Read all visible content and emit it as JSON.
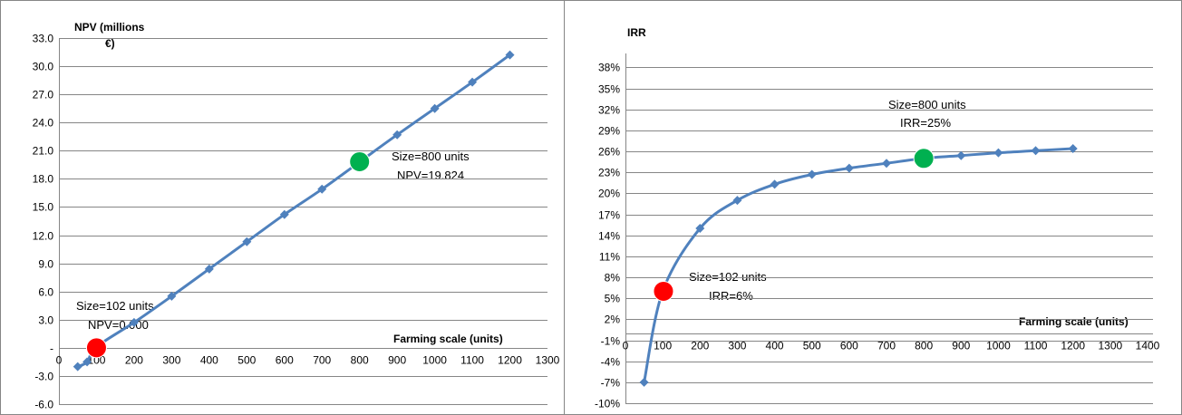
{
  "colors": {
    "series": "#4f81bd",
    "red_marker": "#ff0000",
    "green_marker": "#00b050",
    "grid": "#868686"
  },
  "chart_data": [
    {
      "type": "line",
      "ylabel_line1": "NPV (millions",
      "ylabel_line2": "€)",
      "xlabel": "Farming scale  (units)",
      "ylim": [
        -6,
        33
      ],
      "xlim": [
        0,
        1300
      ],
      "y_ticks": [
        {
          "v": 33,
          "t": "33.0"
        },
        {
          "v": 30,
          "t": "30.0"
        },
        {
          "v": 27,
          "t": "27.0"
        },
        {
          "v": 24,
          "t": "24.0"
        },
        {
          "v": 21,
          "t": "21.0"
        },
        {
          "v": 18,
          "t": "18.0"
        },
        {
          "v": 15,
          "t": "15.0"
        },
        {
          "v": 12,
          "t": "12.0"
        },
        {
          "v": 9,
          "t": "9.0"
        },
        {
          "v": 6,
          "t": "6.0"
        },
        {
          "v": 3,
          "t": "3.0"
        },
        {
          "v": 0,
          "t": "-"
        },
        {
          "v": -3,
          "t": "-3.0"
        },
        {
          "v": -6,
          "t": "-6.0"
        }
      ],
      "x_ticks": [
        "0",
        "100",
        "200",
        "300",
        "400",
        "500",
        "600",
        "700",
        "800",
        "900",
        "1000",
        "1100",
        "1200",
        "1300"
      ],
      "series": [
        {
          "x": [
            50,
            75,
            100,
            200,
            300,
            400,
            500,
            600,
            700,
            800,
            900,
            1000,
            1100,
            1200
          ],
          "values": [
            -2.0,
            -1.5,
            0.1,
            2.7,
            5.5,
            8.4,
            11.3,
            14.2,
            16.9,
            19.8,
            22.7,
            25.5,
            28.3,
            31.2
          ]
        }
      ],
      "highlights": [
        {
          "x": 100,
          "y": 0.0,
          "color": "red",
          "label1": "Size=102 units",
          "label2": "NPV=0.000"
        },
        {
          "x": 800,
          "y": 19.824,
          "color": "green",
          "label1": "Size=800 units",
          "label2": "NPV=19.824"
        }
      ]
    },
    {
      "type": "line",
      "ylabel": "IRR",
      "xlabel": "Farming scale  (units)",
      "ylim": [
        -10,
        40
      ],
      "xlim": [
        0,
        1400
      ],
      "y_ticks": [
        {
          "v": 38,
          "t": "38%"
        },
        {
          "v": 35,
          "t": "35%"
        },
        {
          "v": 32,
          "t": "32%"
        },
        {
          "v": 29,
          "t": "29%"
        },
        {
          "v": 26,
          "t": "26%"
        },
        {
          "v": 23,
          "t": "23%"
        },
        {
          "v": 20,
          "t": "20%"
        },
        {
          "v": 17,
          "t": "17%"
        },
        {
          "v": 14,
          "t": "14%"
        },
        {
          "v": 11,
          "t": "11%"
        },
        {
          "v": 8,
          "t": "8%"
        },
        {
          "v": 5,
          "t": "5%"
        },
        {
          "v": 2,
          "t": "2%"
        },
        {
          "v": -1,
          "t": "-1%"
        },
        {
          "v": -4,
          "t": "-4%"
        },
        {
          "v": -7,
          "t": "-7%"
        },
        {
          "v": -10,
          "t": "-10%"
        }
      ],
      "x_ticks": [
        "0",
        "100",
        "200",
        "300",
        "400",
        "500",
        "600",
        "700",
        "800",
        "900",
        "1000",
        "1100",
        "1200",
        "1300",
        "1400"
      ],
      "series": [
        {
          "x": [
            50,
            100,
            200,
            300,
            400,
            500,
            600,
            700,
            800,
            900,
            1000,
            1100,
            1200
          ],
          "values": [
            -7.0,
            6.0,
            15.0,
            19.0,
            21.3,
            22.7,
            23.6,
            24.3,
            25.0,
            25.4,
            25.8,
            26.1,
            26.4
          ]
        }
      ],
      "highlights": [
        {
          "x": 102,
          "y": 6.0,
          "color": "red",
          "label1": "Size=102 units",
          "label2": "IRR=6%"
        },
        {
          "x": 800,
          "y": 25.0,
          "color": "green",
          "label1": "Size=800 units",
          "label2": "IRR=25%"
        }
      ]
    }
  ]
}
